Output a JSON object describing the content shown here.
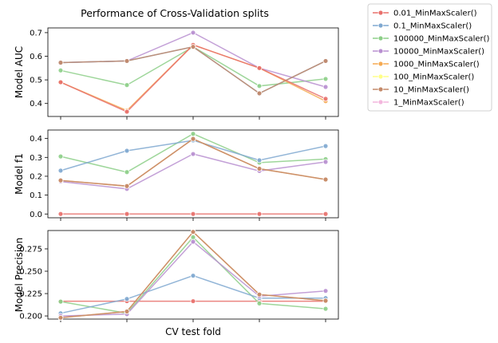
{
  "chart_data": {
    "type": "line",
    "title": "Performance of Cross-Validation splits",
    "xlabel": "CV test fold",
    "x": [
      0,
      1,
      2,
      3,
      4
    ],
    "legend_position": "upper-right-outside",
    "grid": false,
    "legend": [
      {
        "name": "0.01_MinMaxScaler()",
        "color": "#e8706c"
      },
      {
        "name": "0.1_MinMaxScaler()",
        "color": "#7fa8d0"
      },
      {
        "name": "100000_MinMaxScaler()",
        "color": "#8dcf88"
      },
      {
        "name": "10000_MinMaxScaler()",
        "color": "#b88fd0"
      },
      {
        "name": "1000_MinMaxScaler()",
        "color": "#f5aa52"
      },
      {
        "name": "100_MinMaxScaler()",
        "color": "#ffff88"
      },
      {
        "name": "10_MinMaxScaler()",
        "color": "#c48a6a"
      },
      {
        "name": "1_MinMaxScaler()",
        "color": "#f3b6dd"
      }
    ],
    "panels": [
      {
        "ylabel": "Model AUC",
        "ylim": [
          0.345,
          0.72
        ],
        "yticks": [
          0.4,
          0.5,
          0.6,
          0.7
        ],
        "ytick_labels": [
          "0.4",
          "0.5",
          "0.6",
          "0.7"
        ],
        "series": [
          {
            "ref": 2,
            "values": [
              0.54,
              0.478,
              0.64,
              0.474,
              0.504
            ]
          },
          {
            "ref": 3,
            "values": [
              0.573,
              0.58,
              0.7,
              0.55,
              0.47
            ]
          },
          {
            "ref": 1,
            "values": [
              0.573,
              0.58,
              0.64,
              0.443,
              0.58
            ]
          },
          {
            "ref": 4,
            "values": [
              0.49,
              0.37,
              0.648,
              0.55,
              0.41
            ]
          },
          {
            "ref": 0,
            "values": [
              0.49,
              0.365,
              0.648,
              0.55,
              0.42
            ]
          },
          {
            "ref": 6,
            "values": [
              0.573,
              0.58,
              0.64,
              0.443,
              0.58
            ]
          }
        ]
      },
      {
        "ylabel": "Model f1",
        "ylim": [
          -0.02,
          0.445
        ],
        "yticks": [
          0.0,
          0.1,
          0.2,
          0.3,
          0.4
        ],
        "ytick_labels": [
          "0.0",
          "0.1",
          "0.2",
          "0.3",
          "0.4"
        ],
        "series": [
          {
            "ref": 0,
            "values": [
              0.0,
              0.0,
              0.0,
              0.0,
              0.0
            ]
          },
          {
            "ref": 2,
            "values": [
              0.305,
              0.222,
              0.425,
              0.272,
              0.291
            ]
          },
          {
            "ref": 1,
            "values": [
              0.23,
              0.335,
              0.39,
              0.285,
              0.36
            ]
          },
          {
            "ref": 3,
            "values": [
              0.172,
              0.133,
              0.318,
              0.228,
              0.276
            ]
          },
          {
            "ref": 4,
            "values": [
              0.178,
              0.148,
              0.398,
              0.24,
              0.183
            ]
          },
          {
            "ref": 6,
            "values": [
              0.178,
              0.148,
              0.398,
              0.24,
              0.183
            ]
          }
        ]
      },
      {
        "ylabel": "Model Precision",
        "ylim": [
          0.1965,
          0.2955
        ],
        "yticks": [
          0.2,
          0.225,
          0.25,
          0.275
        ],
        "ytick_labels": [
          "0.200",
          "0.225",
          "0.250",
          "0.275"
        ],
        "series": [
          {
            "ref": 0,
            "values": [
              0.2165,
              0.2165,
              0.2165,
              0.2165,
              0.2165
            ]
          },
          {
            "ref": 2,
            "values": [
              0.216,
              0.203,
              0.288,
              0.214,
              0.208
            ]
          },
          {
            "ref": 1,
            "values": [
              0.203,
              0.219,
              0.245,
              0.22,
              0.22
            ]
          },
          {
            "ref": 3,
            "values": [
              0.2,
              0.202,
              0.283,
              0.222,
              0.228
            ]
          },
          {
            "ref": 4,
            "values": [
              0.198,
              0.205,
              0.294,
              0.224,
              0.217
            ]
          },
          {
            "ref": 6,
            "values": [
              0.198,
              0.205,
              0.294,
              0.224,
              0.217
            ]
          }
        ]
      }
    ]
  }
}
